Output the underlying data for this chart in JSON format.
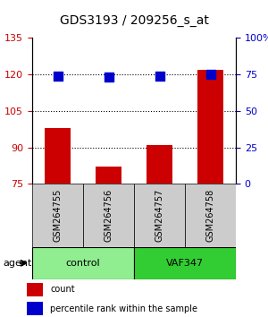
{
  "title": "GDS3193 / 209256_s_at",
  "samples": [
    "GSM264755",
    "GSM264756",
    "GSM264757",
    "GSM264758"
  ],
  "counts": [
    98,
    82,
    91,
    122
  ],
  "percentile_ranks": [
    74,
    73,
    74,
    75
  ],
  "ylim_left": [
    75,
    135
  ],
  "ylim_right": [
    0,
    100
  ],
  "yticks_left": [
    75,
    90,
    105,
    120,
    135
  ],
  "yticks_right": [
    0,
    25,
    50,
    75,
    100
  ],
  "ytick_labels_right": [
    "0",
    "25",
    "50",
    "75",
    "100%"
  ],
  "groups": [
    {
      "label": "control",
      "indices": [
        0,
        1
      ],
      "color": "#90ee90"
    },
    {
      "label": "VAF347",
      "indices": [
        2,
        3
      ],
      "color": "#32cd32"
    }
  ],
  "bar_color": "#cc0000",
  "dot_color": "#0000cc",
  "grid_color": "#000000",
  "background_color": "#ffffff",
  "label_bg_color": "#cccccc",
  "bar_width": 0.5,
  "dot_size": 60,
  "agent_label": "agent",
  "legend_count_label": "count",
  "legend_pct_label": "percentile rank within the sample"
}
